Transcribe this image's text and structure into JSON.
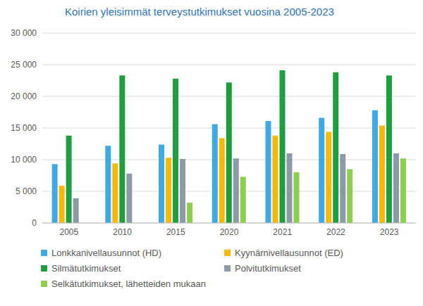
{
  "chart_data": {
    "type": "bar",
    "title": "Koirien yleisimmät terveystutkimukset vuosina 2005-2023",
    "categories": [
      "2005",
      "2010",
      "2015",
      "2020",
      "2021",
      "2022",
      "2023"
    ],
    "series": [
      {
        "name": "Lonkkanivellausunnot (HD)",
        "color": "#3fa9e6",
        "values": [
          9300,
          12200,
          12400,
          15600,
          16100,
          16600,
          17800
        ]
      },
      {
        "name": "Kyynärnivellausunnot (ED)",
        "color": "#f7b900",
        "values": [
          5900,
          9400,
          10300,
          13400,
          13800,
          14400,
          15400
        ]
      },
      {
        "name": "Silmätutkimukset",
        "color": "#1f9e40",
        "values": [
          13800,
          23300,
          22800,
          22200,
          24100,
          23800,
          23300
        ]
      },
      {
        "name": "Polvitutkimukset",
        "color": "#8e99a8",
        "values": [
          3900,
          7800,
          10100,
          10200,
          11000,
          10900,
          11000
        ]
      },
      {
        "name": "Selkätutkimukset, lähetteiden mukaan",
        "color": "#8ccf4e",
        "values": [
          null,
          null,
          3200,
          7300,
          8000,
          8500,
          10200
        ]
      }
    ],
    "ylim": [
      0,
      30000
    ],
    "yticks": [
      0,
      {
        "value": 5000,
        "label": "5 000"
      },
      {
        "value": 10000,
        "label": "10 000"
      },
      {
        "value": 15000,
        "label": "15 000"
      },
      {
        "value": 20000,
        "label": "20 000"
      },
      {
        "value": 25000,
        "label": "25 000"
      },
      {
        "value": 30000,
        "label": "30 000"
      }
    ],
    "grid": true,
    "legend": "bottom"
  }
}
